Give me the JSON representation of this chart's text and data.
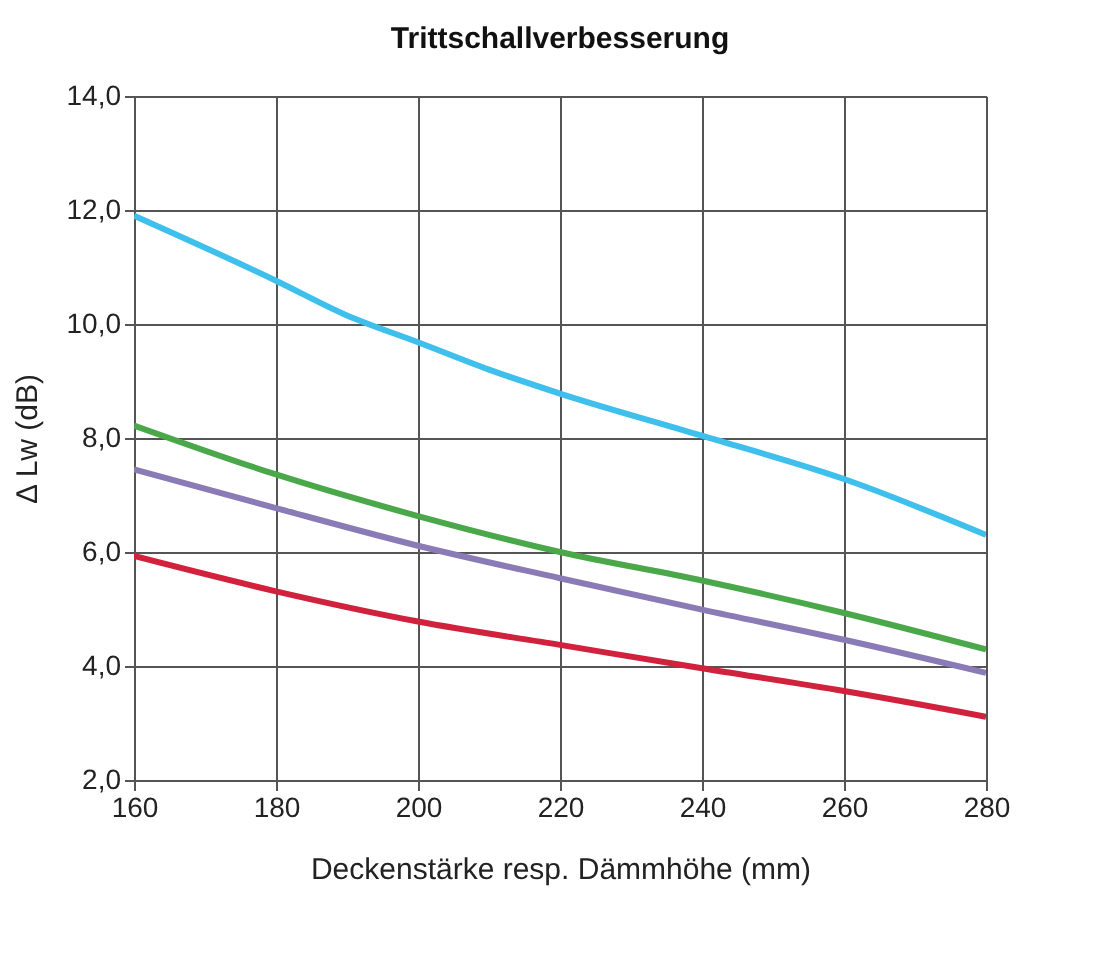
{
  "chart_data": {
    "type": "line",
    "title": "Trittschallverbesserung",
    "xlabel": "Deckenstärke resp. Dämmhöhe (mm)",
    "ylabel": "Δ Lw (dB)",
    "x": [
      160,
      180,
      190,
      200,
      210,
      220,
      240,
      260,
      280
    ],
    "series": [
      {
        "color": "#3ebfec",
        "values": [
          11.9,
          10.76,
          10.15,
          9.68,
          9.2,
          8.78,
          8.04,
          7.28,
          6.3
        ]
      },
      {
        "color": "#4aa74a",
        "x": [
          160,
          180,
          200,
          220,
          240,
          260,
          280
        ],
        "values": [
          8.22,
          7.36,
          6.63,
          6.0,
          5.5,
          4.93,
          4.29
        ]
      },
      {
        "color": "#8a7ab5",
        "x": [
          160,
          180,
          200,
          220,
          240,
          260,
          280
        ],
        "values": [
          7.45,
          6.77,
          6.11,
          5.54,
          4.99,
          4.46,
          3.88
        ]
      },
      {
        "color": "#d0213d",
        "x": [
          160,
          180,
          200,
          220,
          240,
          260,
          280
        ],
        "values": [
          5.93,
          5.31,
          4.78,
          4.37,
          3.96,
          3.56,
          3.11
        ]
      }
    ],
    "xlim": [
      160,
      280
    ],
    "xticks": [
      160,
      180,
      200,
      220,
      240,
      260,
      280
    ],
    "ylim": [
      2,
      14
    ],
    "yticks": [
      {
        "value": 2,
        "label": "2,0"
      },
      {
        "value": 4,
        "label": "4,0"
      },
      {
        "value": 6,
        "label": "6,0"
      },
      {
        "value": 8,
        "label": "8,0"
      },
      {
        "value": 10,
        "label": "10,0"
      },
      {
        "value": 12,
        "label": "12,0"
      },
      {
        "value": 14,
        "label": "14,0"
      }
    ],
    "grid": true,
    "legend": false,
    "marker": "none",
    "line_style": "solid"
  }
}
